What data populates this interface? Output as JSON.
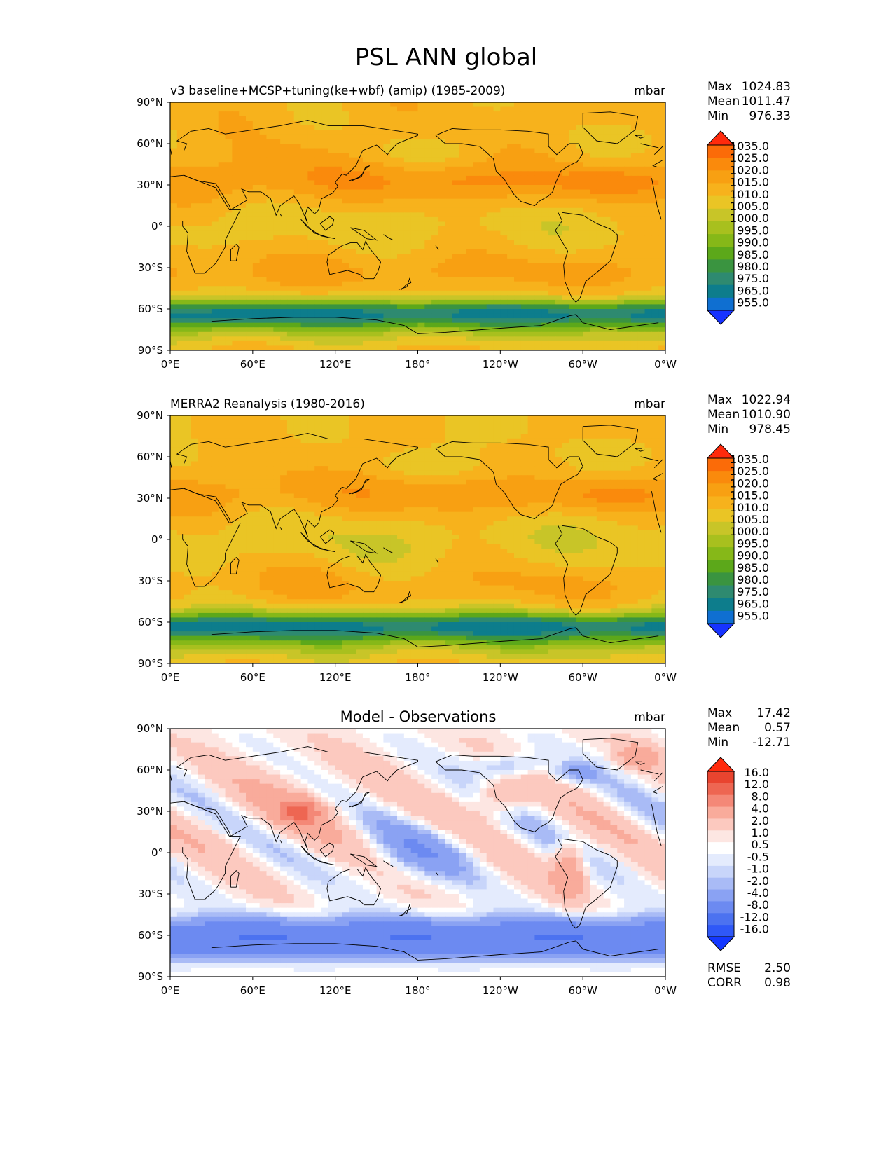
{
  "figure_title": "PSL ANN global",
  "colors": {
    "absolute_levels": [
      "#1733ff",
      "#0f6fd1",
      "#0d7d8c",
      "#2e8a70",
      "#3a9440",
      "#5ca81a",
      "#86b818",
      "#a8c01e",
      "#c8c528",
      "#eac525",
      "#f7b21c",
      "#f8a012",
      "#fa8a0c",
      "#fb6b08",
      "#ff2a0c"
    ],
    "diff_levels": [
      "#1438ff",
      "#2f58f7",
      "#4c72f0",
      "#6c8af1",
      "#8aa2f3",
      "#a9bbf6",
      "#c8d5fa",
      "#e4ebfd",
      "#ffffff",
      "#fde6e2",
      "#fcc9bf",
      "#f9ab9b",
      "#f48877",
      "#ee6652",
      "#e9442f",
      "#ff2a0c"
    ],
    "land_outline": "#000000"
  },
  "chart_data": [
    {
      "type": "heatmap",
      "panel": "test",
      "title": "v3 baseline+MCSP+tuning(ke+wbf) (amip) (1985-2009)",
      "units": "mbar",
      "stats": {
        "max_label": "Max",
        "max": "1024.83",
        "mean_label": "Mean",
        "mean": "1011.47",
        "min_label": "Min",
        "min": "976.33"
      },
      "x_ticks": [
        "0°E",
        "60°E",
        "120°E",
        "180°",
        "120°W",
        "60°W",
        "0°W"
      ],
      "y_ticks": [
        "90°N",
        "60°N",
        "30°N",
        "0°",
        "30°S",
        "60°S",
        "90°S"
      ],
      "xlim": [
        0,
        360
      ],
      "ylim": [
        -90,
        90
      ],
      "colorbar_levels": [
        "1035.0",
        "1025.0",
        "1020.0",
        "1015.0",
        "1010.0",
        "1005.0",
        "1000.0",
        "995.0",
        "990.0",
        "985.0",
        "980.0",
        "975.0",
        "965.0",
        "955.0"
      ],
      "cbar_scale": "absolute"
    },
    {
      "type": "heatmap",
      "panel": "reference",
      "title": "MERRA2 Reanalysis (1980-2016)",
      "units": "mbar",
      "stats": {
        "max_label": "Max",
        "max": "1022.94",
        "mean_label": "Mean",
        "mean": "1010.90",
        "min_label": "Min",
        "min": "978.45"
      },
      "x_ticks": [
        "0°E",
        "60°E",
        "120°E",
        "180°",
        "120°W",
        "60°W",
        "0°W"
      ],
      "y_ticks": [
        "90°N",
        "60°N",
        "30°N",
        "0°",
        "30°S",
        "60°S",
        "90°S"
      ],
      "xlim": [
        0,
        360
      ],
      "ylim": [
        -90,
        90
      ],
      "colorbar_levels": [
        "1035.0",
        "1025.0",
        "1020.0",
        "1015.0",
        "1010.0",
        "1005.0",
        "1000.0",
        "995.0",
        "990.0",
        "985.0",
        "980.0",
        "975.0",
        "965.0",
        "955.0"
      ],
      "cbar_scale": "absolute"
    },
    {
      "type": "heatmap",
      "panel": "difference",
      "title": "Model - Observations",
      "units": "mbar",
      "stats": {
        "max_label": "Max",
        "max": "17.42",
        "mean_label": "Mean",
        "mean": "0.57",
        "min_label": "Min",
        "min": "-12.71"
      },
      "extra_stats": {
        "rmse_label": "RMSE",
        "rmse": "2.50",
        "corr_label": "CORR",
        "corr": "0.98"
      },
      "x_ticks": [
        "0°E",
        "60°E",
        "120°E",
        "180°",
        "120°W",
        "60°W",
        "0°W"
      ],
      "y_ticks": [
        "90°N",
        "60°N",
        "30°N",
        "0°",
        "30°S",
        "60°S",
        "90°S"
      ],
      "xlim": [
        0,
        360
      ],
      "ylim": [
        -90,
        90
      ],
      "colorbar_levels": [
        "16.0",
        "12.0",
        "8.0",
        "4.0",
        "2.0",
        "1.0",
        "0.5",
        "-0.5",
        "-1.0",
        "-2.0",
        "-4.0",
        "-8.0",
        "-12.0",
        "-16.0"
      ],
      "cbar_scale": "diff"
    }
  ]
}
